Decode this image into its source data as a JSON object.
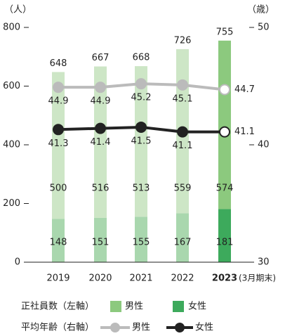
{
  "chart_data": {
    "type": "bar",
    "y_unit": "（人）",
    "y2_unit": "（歳）",
    "categories": [
      "2019",
      "2020",
      "2021",
      "2022",
      "2023"
    ],
    "highlight": "2023",
    "x_annotation": "(3月期末)",
    "ylim": [
      0,
      800
    ],
    "yticks": [
      0,
      200,
      400,
      600,
      800
    ],
    "y2lim": [
      30,
      50
    ],
    "y2ticks": [
      30,
      40,
      50
    ],
    "bar_legend_title": "正社員数（左軸）",
    "line_legend_title": "平均年齢（右軸）",
    "series": [
      {
        "name": "女性",
        "color": "#3daa5c",
        "faded_color": "#a9d7ae",
        "values": [
          148,
          151,
          155,
          167,
          181
        ]
      },
      {
        "name": "男性",
        "color": "#8cc97e",
        "faded_color": "#cde6c6",
        "values": [
          500,
          516,
          513,
          559,
          574
        ]
      }
    ],
    "totals": [
      648,
      667,
      668,
      726,
      755
    ],
    "lines": [
      {
        "name": "男性",
        "color": "#bbbbbb",
        "axis": "y2",
        "values": [
          44.9,
          44.9,
          45.2,
          45.1,
          44.7
        ]
      },
      {
        "name": "女性",
        "color": "#222222",
        "axis": "y2",
        "values": [
          41.3,
          41.4,
          41.5,
          41.1,
          41.1
        ]
      }
    ]
  }
}
